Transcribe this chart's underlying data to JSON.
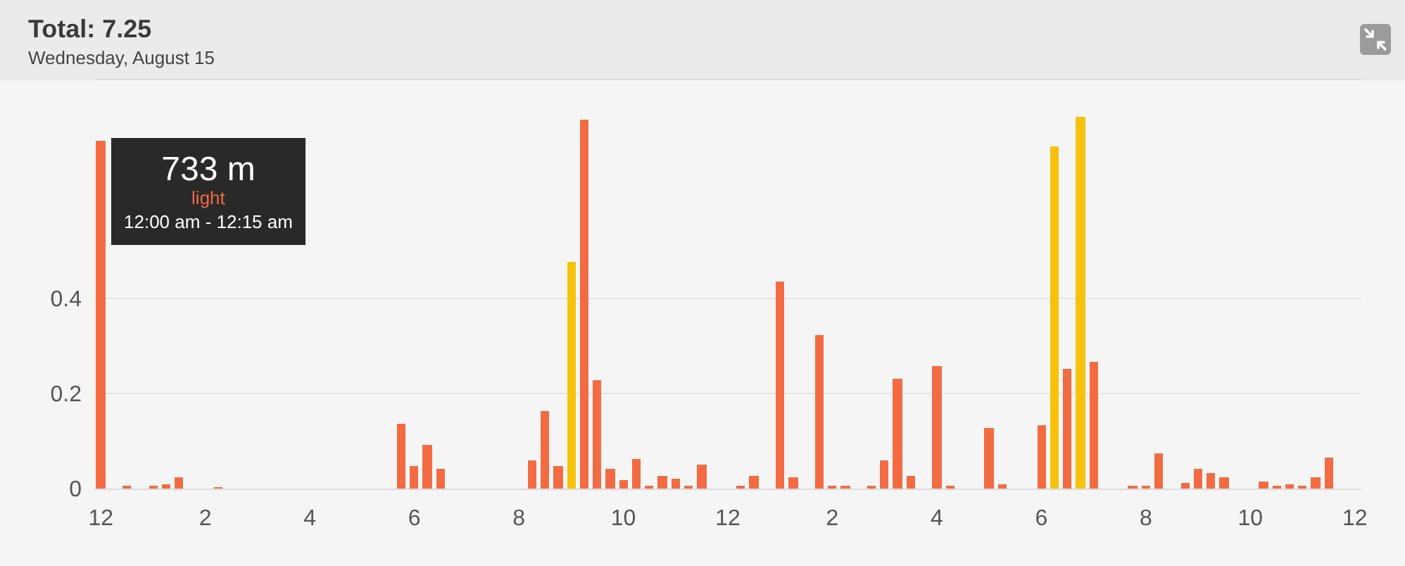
{
  "chart_data": {
    "type": "bar",
    "title": "Total: 7.25",
    "subtitle": "Wednesday, August 15",
    "categories": [
      "12",
      null,
      null,
      null,
      null,
      null,
      null,
      null,
      "2",
      null,
      null,
      null,
      null,
      null,
      null,
      null,
      "4",
      null,
      null,
      null,
      null,
      null,
      null,
      null,
      "6",
      null,
      null,
      null,
      null,
      null,
      null,
      null,
      "8",
      null,
      null,
      null,
      null,
      null,
      null,
      null,
      "10",
      null,
      null,
      null,
      null,
      null,
      null,
      null,
      "12",
      null,
      null,
      null,
      null,
      null,
      null,
      null,
      "2",
      null,
      null,
      null,
      null,
      null,
      null,
      null,
      "4",
      null,
      null,
      null,
      null,
      null,
      null,
      null,
      "6",
      null,
      null,
      null,
      null,
      null,
      null,
      null,
      "8",
      null,
      null,
      null,
      null,
      null,
      null,
      null,
      "10",
      null,
      null,
      null,
      null,
      null,
      null,
      null,
      "12"
    ],
    "series": [
      {
        "name": "light",
        "color": "#f36b42",
        "values": [
          0.733,
          null,
          0.007,
          null,
          0.005,
          0.008,
          0.023,
          null,
          null,
          0.002,
          null,
          null,
          null,
          null,
          null,
          null,
          null,
          null,
          null,
          null,
          null,
          null,
          null,
          0.137,
          0.048,
          0.092,
          0.041,
          null,
          null,
          null,
          null,
          null,
          null,
          0.06,
          0.162,
          0.048,
          null,
          0.776,
          0.228,
          0.041,
          0.019,
          0.063,
          0.006,
          0.028,
          0.021,
          0.007,
          0.05,
          null,
          null,
          0.004,
          0.026,
          null,
          0.437,
          0.023,
          null,
          0.322,
          0.004,
          0.005,
          null,
          0.003,
          0.06,
          0.231,
          0.028,
          null,
          0.258,
          0.005,
          null,
          null,
          0.127,
          0.009,
          null,
          null,
          0.134,
          null,
          0.253,
          null,
          0.266,
          null,
          null,
          0.006,
          0.005,
          0.073,
          null,
          0.012,
          0.043,
          0.032,
          0.023,
          null,
          null,
          0.015,
          0.003,
          0.01,
          0.007,
          0.025,
          0.066,
          null,
          null
        ]
      },
      {
        "color": "#f7c20c",
        "values": [
          null,
          null,
          null,
          null,
          null,
          null,
          null,
          null,
          null,
          null,
          null,
          null,
          null,
          null,
          null,
          null,
          null,
          null,
          null,
          null,
          null,
          null,
          null,
          null,
          null,
          null,
          null,
          null,
          null,
          null,
          null,
          null,
          null,
          null,
          null,
          null,
          0.477,
          null,
          null,
          null,
          null,
          null,
          null,
          null,
          null,
          null,
          null,
          null,
          null,
          null,
          null,
          null,
          null,
          null,
          null,
          null,
          null,
          null,
          null,
          null,
          null,
          null,
          null,
          null,
          null,
          null,
          null,
          null,
          null,
          null,
          null,
          null,
          null,
          0.722,
          null,
          0.783,
          null,
          null,
          null,
          null,
          null,
          null,
          null,
          null,
          null,
          null,
          null,
          null,
          null,
          null,
          null,
          null,
          null,
          null,
          null,
          null,
          null
        ]
      }
    ],
    "annotations": [
      {
        "text": "733 m",
        "x": "12",
        "y": 0.733
      },
      "12:00 am - 12:15 am"
    ],
    "ylim": [
      0,
      0.86
    ],
    "yticks": [
      0,
      0.2,
      0.4
    ],
    "grid": "y"
  }
}
